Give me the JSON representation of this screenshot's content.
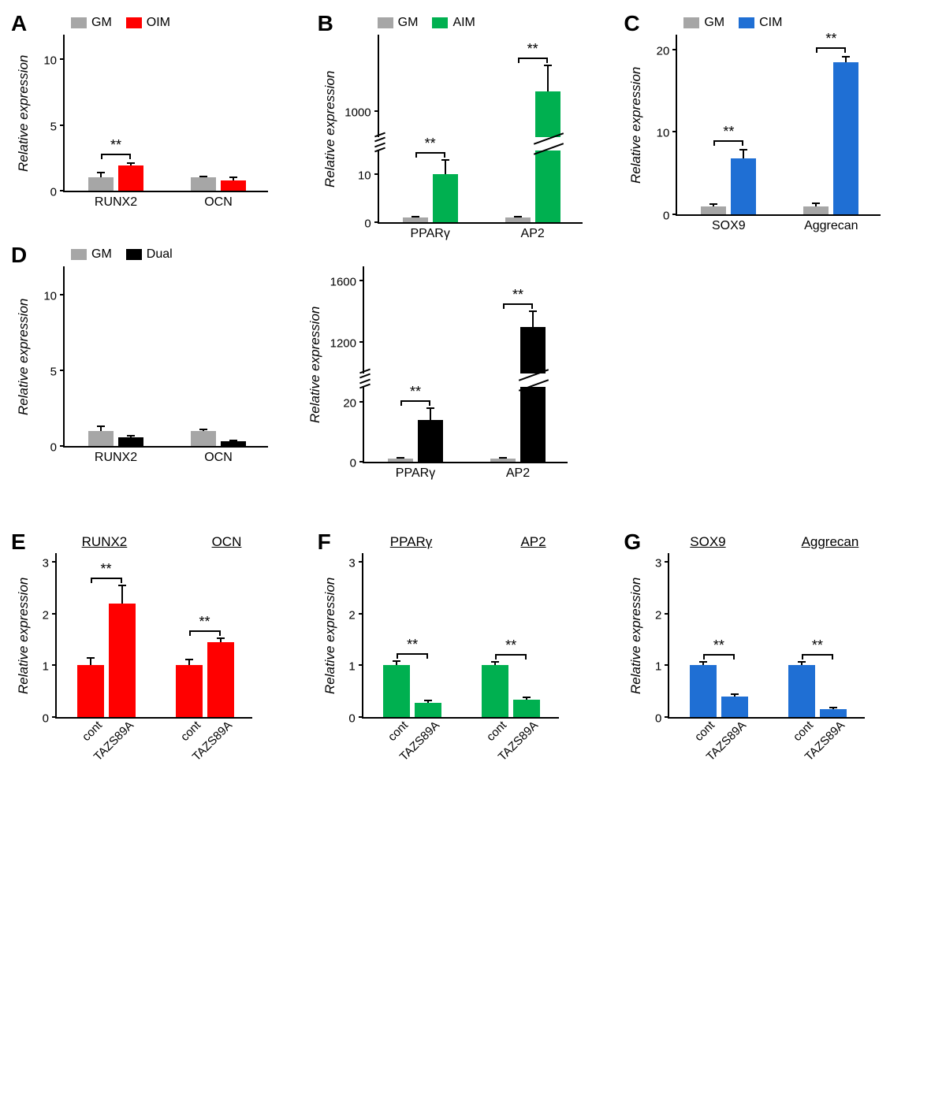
{
  "colors": {
    "gm": "#a6a6a6",
    "oim": "#ff0000",
    "aim": "#00b050",
    "cim": "#1f6fd4",
    "dual": "#000000",
    "axis": "#000000"
  },
  "ylabel": "Relative expression",
  "panelA": {
    "label": "A",
    "legend": [
      {
        "name": "GM",
        "color": "#a6a6a6"
      },
      {
        "name": "OIM",
        "color": "#ff0000"
      }
    ],
    "ylim": [
      0,
      12
    ],
    "yticks": [
      0,
      5,
      10
    ],
    "categories": [
      "RUNX2",
      "OCN"
    ],
    "gm": {
      "values": [
        1.0,
        1.0
      ],
      "err": [
        0.4,
        0.1
      ]
    },
    "oim": {
      "values": [
        1.9,
        0.8
      ],
      "err": [
        0.2,
        0.2
      ]
    },
    "sig": [
      "**",
      ""
    ]
  },
  "panelB": {
    "label": "B",
    "legend": [
      {
        "name": "GM",
        "color": "#a6a6a6"
      },
      {
        "name": "AIM",
        "color": "#00b050"
      }
    ],
    "lower_ylim": [
      0,
      15
    ],
    "upper_ylim": [
      800,
      1600
    ],
    "yticks_lower": [
      0,
      10
    ],
    "yticks_upper": [
      1000
    ],
    "categories": [
      "PPARγ",
      "AP2"
    ],
    "gm": {
      "values": [
        1.0,
        1.0
      ],
      "err": [
        0.2,
        0.2
      ]
    },
    "aim": {
      "values": [
        10,
        1150
      ],
      "err": [
        3,
        200
      ]
    },
    "sig": [
      "**",
      "**"
    ]
  },
  "panelC": {
    "label": "C",
    "legend": [
      {
        "name": "GM",
        "color": "#a6a6a6"
      },
      {
        "name": "CIM",
        "color": "#1f6fd4"
      }
    ],
    "ylim": [
      0,
      22
    ],
    "yticks": [
      0,
      10,
      20
    ],
    "categories": [
      "SOX9",
      "Aggrecan"
    ],
    "gm": {
      "values": [
        1.0,
        1.0
      ],
      "err": [
        0.2,
        0.3
      ]
    },
    "cim": {
      "values": [
        6.8,
        18.5
      ],
      "err": [
        1.0,
        0.6
      ]
    },
    "sig": [
      "**",
      "**"
    ]
  },
  "panelD": {
    "label": "D",
    "legend": [
      {
        "name": "GM",
        "color": "#a6a6a6"
      },
      {
        "name": "Dual",
        "color": "#000000"
      }
    ],
    "left": {
      "ylim": [
        0,
        12
      ],
      "yticks": [
        0,
        5,
        10
      ],
      "categories": [
        "RUNX2",
        "OCN"
      ],
      "gm": {
        "values": [
          1.0,
          1.0
        ],
        "err": [
          0.3,
          0.1
        ]
      },
      "dual": {
        "values": [
          0.6,
          0.3
        ],
        "err": [
          0.1,
          0.05
        ]
      }
    },
    "right": {
      "lower_ylim": [
        0,
        25
      ],
      "upper_ylim": [
        1000,
        1700
      ],
      "yticks_lower": [
        0,
        20
      ],
      "yticks_upper": [
        1200,
        1600
      ],
      "categories": [
        "PPARγ",
        "AP2"
      ],
      "gm": {
        "values": [
          1.0,
          1.0
        ],
        "err": [
          0.2,
          0.2
        ]
      },
      "dual": {
        "values": [
          14,
          1300
        ],
        "err": [
          4,
          100
        ]
      },
      "sig": [
        "**",
        "**"
      ]
    }
  },
  "panelE": {
    "label": "E",
    "subtitles": [
      "RUNX2",
      "OCN"
    ],
    "ylim": [
      0,
      3.2
    ],
    "yticks": [
      0,
      1,
      2,
      3
    ],
    "xlabels": [
      "cont",
      "TAZS89A"
    ],
    "color": "#ff0000",
    "groups": [
      {
        "cont": {
          "v": 1.0,
          "e": 0.15
        },
        "taz": {
          "v": 2.2,
          "e": 0.35
        }
      },
      {
        "cont": {
          "v": 1.0,
          "e": 0.12
        },
        "taz": {
          "v": 1.45,
          "e": 0.08
        }
      }
    ],
    "sig": [
      "**",
      "**"
    ]
  },
  "panelF": {
    "label": "F",
    "subtitles": [
      "PPARγ",
      "AP2"
    ],
    "ylim": [
      0,
      3.2
    ],
    "yticks": [
      0,
      1,
      2,
      3
    ],
    "xlabels": [
      "cont",
      "TAZS89A"
    ],
    "color": "#00b050",
    "groups": [
      {
        "cont": {
          "v": 1.0,
          "e": 0.08
        },
        "taz": {
          "v": 0.28,
          "e": 0.04
        }
      },
      {
        "cont": {
          "v": 1.0,
          "e": 0.06
        },
        "taz": {
          "v": 0.33,
          "e": 0.05
        }
      }
    ],
    "sig": [
      "**",
      "**"
    ]
  },
  "panelG": {
    "label": "G",
    "subtitles": [
      "SOX9",
      "Aggrecan"
    ],
    "ylim": [
      0,
      3.2
    ],
    "yticks": [
      0,
      1,
      2,
      3
    ],
    "xlabels": [
      "cont",
      "TAZS89A"
    ],
    "color": "#1f6fd4",
    "groups": [
      {
        "cont": {
          "v": 1.0,
          "e": 0.07
        },
        "taz": {
          "v": 0.4,
          "e": 0.04
        }
      },
      {
        "cont": {
          "v": 1.0,
          "e": 0.06
        },
        "taz": {
          "v": 0.15,
          "e": 0.03
        }
      }
    ],
    "sig": [
      "**",
      "**"
    ]
  }
}
